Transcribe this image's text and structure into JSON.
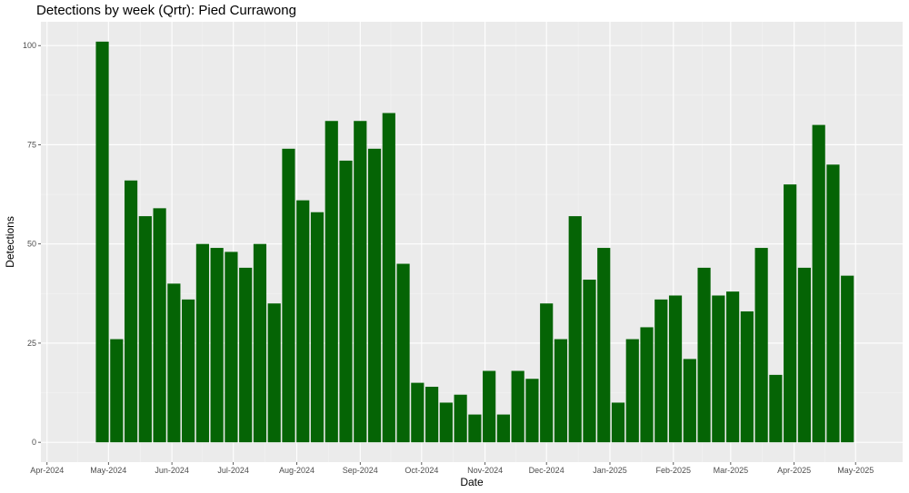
{
  "chart_data": {
    "type": "bar",
    "title": "Detections by week (Qrtr): Pied Currawong",
    "xlabel": "Date",
    "ylabel": "Detections",
    "ylim": [
      -5,
      106
    ],
    "xlim": [
      "2024-03-29",
      "2025-05-24"
    ],
    "y_ticks": [
      0,
      25,
      50,
      75,
      100
    ],
    "x_ticks": [
      {
        "date": "2024-04-01",
        "label": "Apr-2024"
      },
      {
        "date": "2024-05-01",
        "label": "May-2024"
      },
      {
        "date": "2024-06-01",
        "label": "Jun-2024"
      },
      {
        "date": "2024-07-01",
        "label": "Jul-2024"
      },
      {
        "date": "2024-08-01",
        "label": "Aug-2024"
      },
      {
        "date": "2024-09-01",
        "label": "Sep-2024"
      },
      {
        "date": "2024-10-01",
        "label": "Oct-2024"
      },
      {
        "date": "2024-11-01",
        "label": "Nov-2024"
      },
      {
        "date": "2024-12-01",
        "label": "Dec-2024"
      },
      {
        "date": "2025-01-01",
        "label": "Jan-2025"
      },
      {
        "date": "2025-02-01",
        "label": "Feb-2025"
      },
      {
        "date": "2025-03-01",
        "label": "Mar-2025"
      },
      {
        "date": "2025-04-01",
        "label": "Apr-2025"
      },
      {
        "date": "2025-05-01",
        "label": "May-2025"
      }
    ],
    "bar_width_days": 6.3,
    "grid": true,
    "legend": "none",
    "colors": {
      "bar": "#056405",
      "panel": "#ebebeb",
      "grid_major": "#ffffff"
    },
    "x": [
      "2024-04-28",
      "2024-05-05",
      "2024-05-12",
      "2024-05-19",
      "2024-05-26",
      "2024-06-02",
      "2024-06-09",
      "2024-06-16",
      "2024-06-23",
      "2024-06-30",
      "2024-07-07",
      "2024-07-14",
      "2024-07-21",
      "2024-07-28",
      "2024-08-04",
      "2024-08-11",
      "2024-08-18",
      "2024-08-25",
      "2024-09-01",
      "2024-09-08",
      "2024-09-15",
      "2024-09-22",
      "2024-09-29",
      "2024-10-06",
      "2024-10-13",
      "2024-10-20",
      "2024-10-27",
      "2024-11-03",
      "2024-11-10",
      "2024-11-17",
      "2024-11-24",
      "2024-12-01",
      "2024-12-08",
      "2024-12-15",
      "2024-12-22",
      "2024-12-29",
      "2025-01-05",
      "2025-01-12",
      "2025-01-19",
      "2025-01-26",
      "2025-02-02",
      "2025-02-09",
      "2025-02-16",
      "2025-02-23",
      "2025-03-02",
      "2025-03-09",
      "2025-03-16",
      "2025-03-23",
      "2025-03-30",
      "2025-04-06",
      "2025-04-13",
      "2025-04-20",
      "2025-04-27"
    ],
    "values": [
      101,
      26,
      66,
      57,
      59,
      40,
      36,
      50,
      49,
      48,
      44,
      50,
      35,
      74,
      61,
      58,
      81,
      71,
      81,
      74,
      83,
      45,
      15,
      14,
      10,
      12,
      7,
      18,
      7,
      18,
      16,
      35,
      26,
      57,
      41,
      49,
      10,
      26,
      29,
      36,
      37,
      21,
      44,
      37,
      38,
      33,
      49,
      17,
      65,
      44,
      80,
      70,
      42
    ]
  }
}
